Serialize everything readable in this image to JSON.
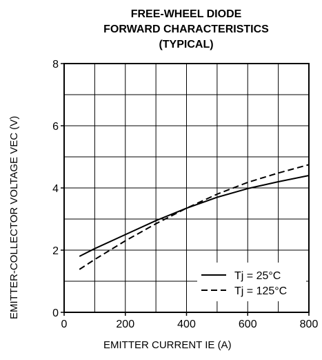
{
  "chart_data": {
    "type": "line",
    "title_lines": [
      "FREE-WHEEL DIODE",
      "FORWARD CHARACTERISTICS",
      "(TYPICAL)"
    ],
    "ylabel": "EMITTER-COLLECTOR VOLTAGE VEC (V)",
    "xlabel": "EMITTER CURRENT IE (A)",
    "xlim": [
      0,
      800
    ],
    "ylim": [
      0,
      8
    ],
    "xticks": [
      "0",
      "200",
      "400",
      "600",
      "800"
    ],
    "yticks": [
      "0",
      "2",
      "4",
      "6",
      "8"
    ],
    "grid": true,
    "legend_position": "bottom-right",
    "series": [
      {
        "name": "Tj = 25°C",
        "style": "solid",
        "x": [
          50,
          100,
          200,
          300,
          400,
          500,
          600,
          700,
          800
        ],
        "y": [
          1.8,
          2.05,
          2.5,
          2.95,
          3.35,
          3.7,
          3.98,
          4.2,
          4.4
        ]
      },
      {
        "name": "Tj = 125°C",
        "style": "dashed",
        "x": [
          50,
          100,
          200,
          300,
          400,
          500,
          600,
          700,
          800
        ],
        "y": [
          1.38,
          1.7,
          2.3,
          2.85,
          3.35,
          3.8,
          4.18,
          4.48,
          4.75
        ]
      }
    ]
  }
}
